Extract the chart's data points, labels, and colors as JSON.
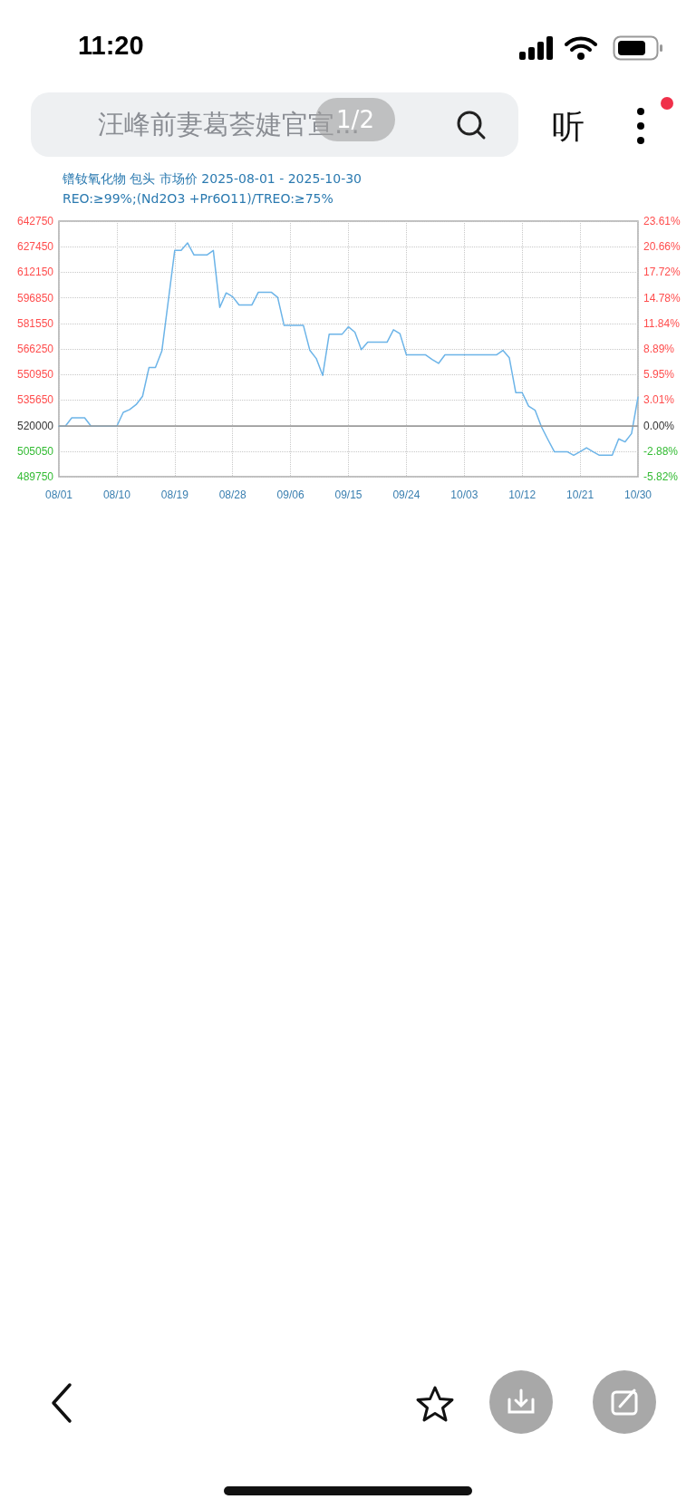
{
  "chart_data": {
    "type": "line",
    "title": "镨钕氧化物 包头 市场价 2025-08-01 - 2025-10-30",
    "subtitle": "REO:≥99%;(Nd2O3 +Pr6O11)/TREO:≥75%",
    "annotations": [
      "11:20",
      "汪峰前妻葛荟婕官宣...",
      "1/2",
      "听"
    ],
    "x": [
      "2025-08-01",
      "2025-08-02",
      "2025-08-03",
      "2025-08-04",
      "2025-08-05",
      "2025-08-06",
      "2025-08-07",
      "2025-08-08",
      "2025-08-09",
      "2025-08-10",
      "2025-08-11",
      "2025-08-12",
      "2025-08-13",
      "2025-08-14",
      "2025-08-15",
      "2025-08-16",
      "2025-08-17",
      "2025-08-18",
      "2025-08-19",
      "2025-08-20",
      "2025-08-21",
      "2025-08-22",
      "2025-08-23",
      "2025-08-24",
      "2025-08-25",
      "2025-08-26",
      "2025-08-27",
      "2025-08-28",
      "2025-08-29",
      "2025-08-30",
      "2025-08-31",
      "2025-09-01",
      "2025-09-02",
      "2025-09-03",
      "2025-09-04",
      "2025-09-05",
      "2025-09-06",
      "2025-09-07",
      "2025-09-08",
      "2025-09-09",
      "2025-09-10",
      "2025-09-11",
      "2025-09-12",
      "2025-09-13",
      "2025-09-14",
      "2025-09-15",
      "2025-09-16",
      "2025-09-17",
      "2025-09-18",
      "2025-09-19",
      "2025-09-20",
      "2025-09-21",
      "2025-09-22",
      "2025-09-23",
      "2025-09-24",
      "2025-09-25",
      "2025-09-26",
      "2025-09-27",
      "2025-09-28",
      "2025-09-29",
      "2025-09-30",
      "2025-10-01",
      "2025-10-02",
      "2025-10-03",
      "2025-10-04",
      "2025-10-05",
      "2025-10-06",
      "2025-10-07",
      "2025-10-08",
      "2025-10-09",
      "2025-10-10",
      "2025-10-11",
      "2025-10-12",
      "2025-10-13",
      "2025-10-14",
      "2025-10-15",
      "2025-10-16",
      "2025-10-17",
      "2025-10-18",
      "2025-10-19",
      "2025-10-20",
      "2025-10-21",
      "2025-10-22",
      "2025-10-23",
      "2025-10-24",
      "2025-10-25",
      "2025-10-26",
      "2025-10-27",
      "2025-10-28",
      "2025-10-29",
      "2025-10-30"
    ],
    "series": [
      {
        "color": "#6cb4e8",
        "values": [
          520000,
          520000,
          525000,
          525000,
          525000,
          520000,
          520000,
          520000,
          520000,
          520000,
          528300,
          530000,
          532900,
          537900,
          555100,
          555100,
          565000,
          595000,
          625200,
          625200,
          629700,
          622500,
          622500,
          622500,
          625200,
          591100,
          599800,
          597500,
          592600,
          592600,
          592600,
          600200,
          600200,
          600200,
          597100,
          580300,
          580300,
          580300,
          580300,
          565400,
          560500,
          550400,
          575000,
          575000,
          575000,
          579500,
          576300,
          565800,
          570300,
          570300,
          570300,
          570300,
          577700,
          575400,
          562700,
          562700,
          562700,
          562700,
          560000,
          557600,
          562700,
          562700,
          562700,
          562700,
          562700,
          562700,
          562700,
          562700,
          562700,
          565400,
          560900,
          540100,
          540100,
          532000,
          529600,
          519600,
          512000,
          504700,
          504700,
          504700,
          502600,
          504700,
          507100,
          504700,
          502600,
          502600,
          502600,
          512400,
          510600,
          515600,
          537400
        ]
      }
    ],
    "xlim": [
      "2025-08-01",
      "2025-10-30"
    ],
    "xticks": [
      {
        "value": "2025-08-01",
        "label": "08/01"
      },
      {
        "value": "2025-08-10",
        "label": "08/10"
      },
      {
        "value": "2025-08-19",
        "label": "08/19"
      },
      {
        "value": "2025-08-28",
        "label": "08/28"
      },
      {
        "value": "2025-09-06",
        "label": "09/06"
      },
      {
        "value": "2025-09-15",
        "label": "09/15"
      },
      {
        "value": "2025-09-24",
        "label": "09/24"
      },
      {
        "value": "2025-10-03",
        "label": "10/03"
      },
      {
        "value": "2025-10-12",
        "label": "10/12"
      },
      {
        "value": "2025-10-21",
        "label": "10/21"
      },
      {
        "value": "2025-10-30",
        "label": "10/30"
      }
    ],
    "ylim": [
      489750,
      642750
    ],
    "yticks": [
      489750,
      505050,
      520000,
      535650,
      550950,
      566250,
      581550,
      596850,
      612150,
      627450,
      642750
    ],
    "y2lim": [
      -5.82,
      23.61
    ],
    "y2ticks": [
      {
        "value": -5.82,
        "label": "-5.82%"
      },
      {
        "value": -2.88,
        "label": "-2.88%"
      },
      {
        "value": 0,
        "label": "0.00%"
      },
      {
        "value": 3.01,
        "label": "3.01%"
      },
      {
        "value": 5.95,
        "label": "5.95%"
      },
      {
        "value": 8.89,
        "label": "8.89%"
      },
      {
        "value": 11.84,
        "label": "11.84%"
      },
      {
        "value": 14.78,
        "label": "14.78%"
      },
      {
        "value": 17.72,
        "label": "17.72%"
      },
      {
        "value": 20.66,
        "label": "20.66%"
      },
      {
        "value": 23.61,
        "label": "23.61%"
      }
    ],
    "ref_lines": [
      {
        "axis": "y",
        "value": 520000,
        "color": "#999999"
      }
    ],
    "grid": true,
    "marker": "none",
    "line_style": "solid"
  }
}
